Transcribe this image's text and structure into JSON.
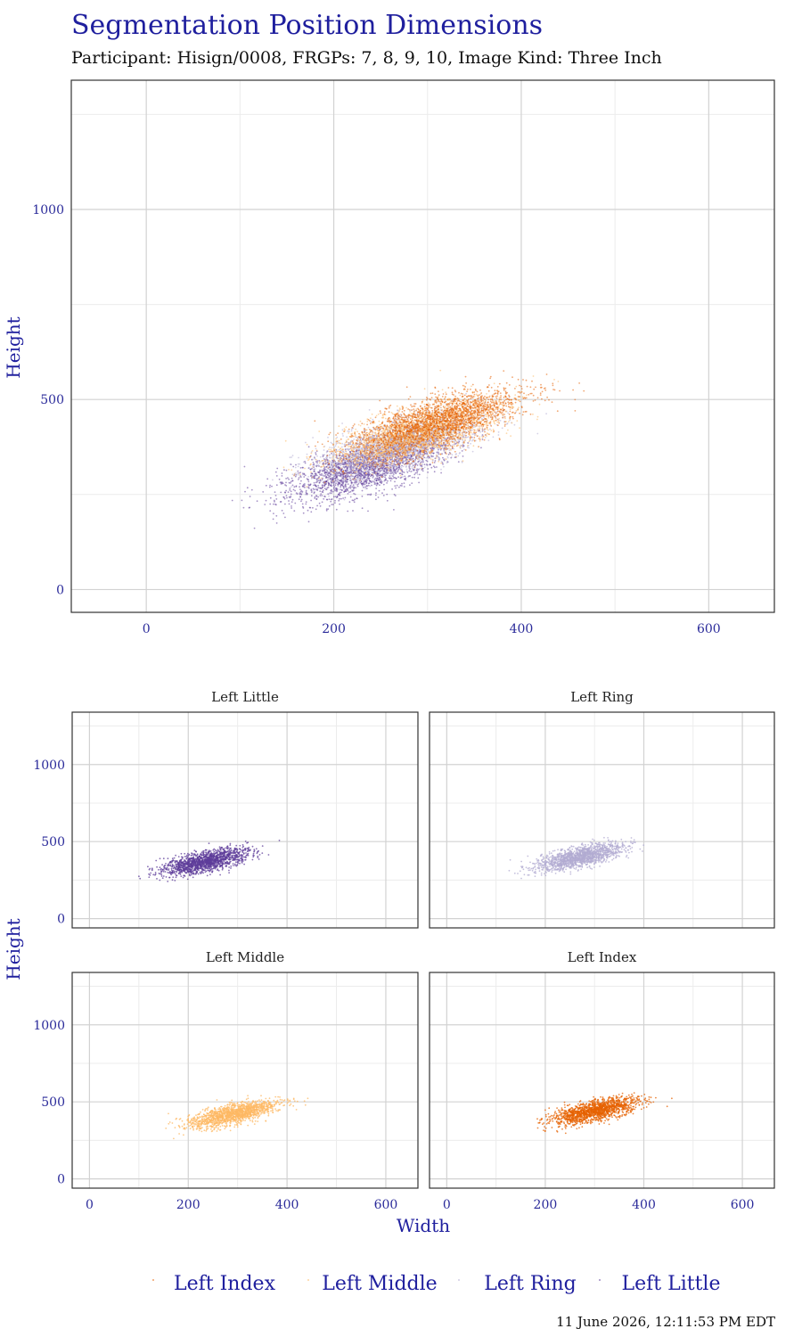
{
  "title": "Segmentation Position Dimensions",
  "subtitle": "Participant: Hisign/0008, FRGPs: 7, 8, 9, 10, Image Kind: Three Inch",
  "timestamp": "11 June 2026, 12:11:53 PM EDT",
  "colors": {
    "Left Index": "#e66101",
    "Left Middle": "#fdb863",
    "Left Ring": "#b2abd2",
    "Left Little": "#5e3c99"
  },
  "chart_data": [
    {
      "type": "scatter",
      "panel": "combined",
      "xlabel": "",
      "ylabel": "Height",
      "xlim": [
        -80,
        670
      ],
      "ylim": [
        -60,
        1340
      ],
      "xticks": [
        "0",
        "200",
        "400",
        "600"
      ],
      "yticks": [
        "0",
        "500",
        "1000"
      ],
      "grid": true,
      "series": [
        {
          "name": "Left Little",
          "center": [
            235,
            320
          ],
          "width_range": [
            85,
            360
          ],
          "height_range": [
            110,
            560
          ]
        },
        {
          "name": "Left Ring",
          "center": [
            270,
            380
          ],
          "width_range": [
            120,
            440
          ],
          "height_range": [
            200,
            570
          ]
        },
        {
          "name": "Left Middle",
          "center": [
            290,
            410
          ],
          "width_range": [
            130,
            450
          ],
          "height_range": [
            230,
            580
          ]
        },
        {
          "name": "Left Index",
          "center": [
            310,
            440
          ],
          "width_range": [
            160,
            480
          ],
          "height_range": [
            160,
            580
          ]
        }
      ]
    },
    {
      "type": "scatter",
      "panel": "facets",
      "xlabel": "Width",
      "ylabel": "Height",
      "xlim": [
        -35,
        665
      ],
      "ylim": [
        -60,
        1340
      ],
      "xticks": [
        "0",
        "200",
        "400",
        "600"
      ],
      "yticks": [
        "0",
        "500",
        "1000"
      ],
      "grid": true,
      "facets": [
        {
          "title": "Left Little",
          "series": "Left Little",
          "center": [
            235,
            370
          ],
          "width_range": [
            100,
            420
          ],
          "height_range": [
            150,
            510
          ]
        },
        {
          "title": "Left Ring",
          "series": "Left Ring",
          "center": [
            270,
            400
          ],
          "width_range": [
            120,
            440
          ],
          "height_range": [
            220,
            540
          ]
        },
        {
          "title": "Left Middle",
          "series": "Left Middle",
          "center": [
            290,
            420
          ],
          "width_range": [
            130,
            450
          ],
          "height_range": [
            230,
            560
          ]
        },
        {
          "title": "Left Index",
          "series": "Left Index",
          "center": [
            300,
            440
          ],
          "width_range": [
            160,
            470
          ],
          "height_range": [
            160,
            560
          ]
        }
      ]
    }
  ],
  "legend": {
    "position": "bottom",
    "items": [
      "Left Index",
      "Left Middle",
      "Left Ring",
      "Left Little"
    ]
  }
}
